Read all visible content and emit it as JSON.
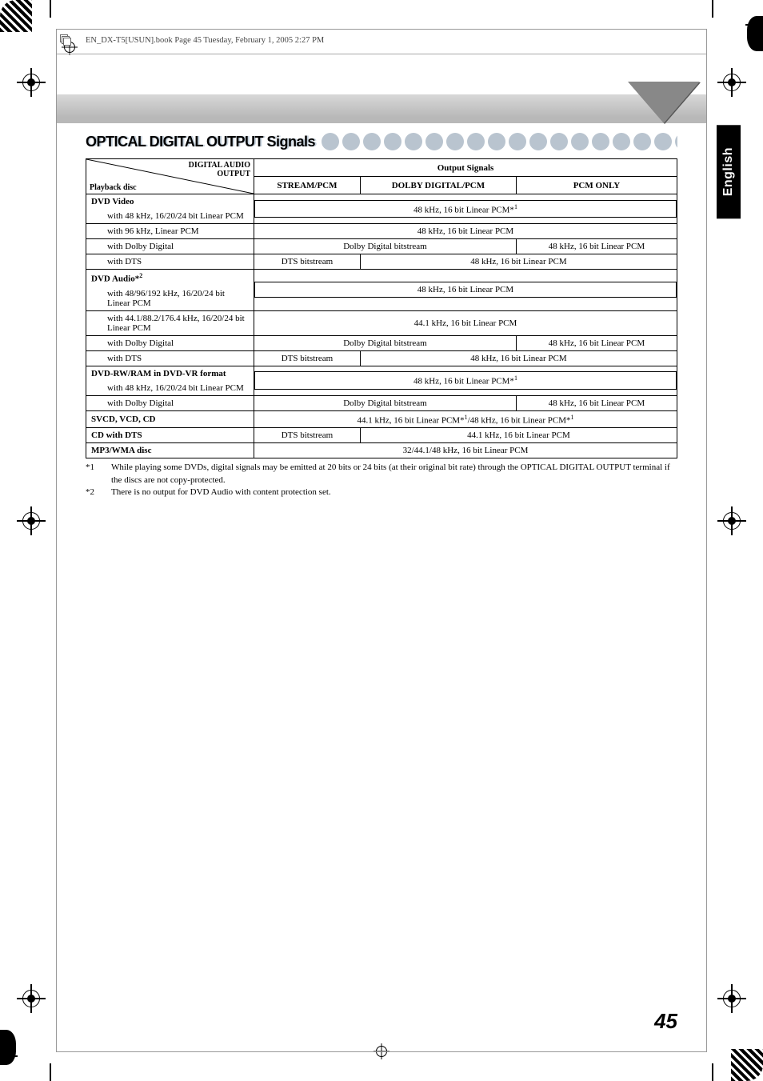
{
  "meta": {
    "bookline": "EN_DX-T5[USUN].book  Page 45  Tuesday, February 1, 2005  2:27 PM"
  },
  "lang_tab": "English",
  "section_title": "OPTICAL DIGITAL OUTPUT Signals",
  "table": {
    "diag_top": "DIGITAL AUDIO\nOUTPUT",
    "diag_bottom": "Playback disc",
    "output_signals_header": "Output Signals",
    "cols": {
      "stream": "STREAM/PCM",
      "dolby": "DOLBY DIGITAL/PCM",
      "pcm": "PCM ONLY"
    },
    "groups": [
      {
        "title": "DVD Video",
        "rows": [
          {
            "label": "with 48 kHz, 16/20/24 bit Linear PCM",
            "span": "all",
            "value": "48 kHz, 16 bit Linear PCM*",
            "sup": "1"
          },
          {
            "label": "with 96 kHz, Linear PCM",
            "span": "all",
            "value": "48 kHz, 16 bit Linear PCM"
          },
          {
            "label": "with Dolby Digital",
            "span": "2+1",
            "left": "Dolby Digital bitstream",
            "right": "48 kHz, 16 bit Linear PCM"
          },
          {
            "label": "with DTS",
            "span": "1+2",
            "left": "DTS bitstream",
            "right": "48 kHz, 16 bit Linear PCM"
          }
        ]
      },
      {
        "title": "DVD Audio*",
        "title_sup": "2",
        "rows": [
          {
            "label": "with 48/96/192 kHz, 16/20/24 bit Linear PCM",
            "span": "all",
            "value": "48 kHz, 16 bit Linear PCM"
          },
          {
            "label": "with 44.1/88.2/176.4 kHz, 16/20/24 bit Linear PCM",
            "span": "all",
            "value": "44.1 kHz, 16 bit Linear PCM"
          },
          {
            "label": "with Dolby Digital",
            "span": "2+1",
            "left": "Dolby Digital bitstream",
            "right": "48 kHz, 16 bit Linear PCM"
          },
          {
            "label": "with DTS",
            "span": "1+2",
            "left": "DTS bitstream",
            "right": "48 kHz, 16 bit Linear PCM"
          }
        ]
      },
      {
        "title": "DVD-RW/RAM in DVD-VR format",
        "rows": [
          {
            "label": "with 48 kHz, 16/20/24 bit Linear PCM",
            "span": "all",
            "value": "48 kHz, 16 bit Linear PCM*",
            "sup": "1"
          },
          {
            "label": "with Dolby Digital",
            "span": "2+1",
            "left": "Dolby Digital bitstream",
            "right": "48 kHz, 16 bit Linear PCM"
          }
        ]
      },
      {
        "title": "SVCD, VCD, CD",
        "single": true,
        "span": "all",
        "value_html": "44.1 kHz, 16 bit Linear PCM*<sup>1</sup>/48 kHz, 16 bit Linear PCM*<sup>1</sup>"
      },
      {
        "title": "CD with DTS",
        "single": true,
        "span": "1+2",
        "left": "DTS bitstream",
        "right": "44.1 kHz, 16 bit Linear PCM"
      },
      {
        "title": "MP3/WMA disc",
        "single": true,
        "span": "all",
        "value": "32/44.1/48 kHz, 16 bit Linear PCM"
      }
    ]
  },
  "footnotes": {
    "f1_id": "*1",
    "f1": "While playing some DVDs, digital signals may be emitted at 20 bits or 24 bits (at their original bit rate) through the OPTICAL DIGITAL OUTPUT terminal if the discs are not copy-protected.",
    "f2_id": "*2",
    "f2": "There is no output for DVD Audio with content protection set."
  },
  "page_number": "45",
  "colors": {
    "dot": "#b9c4cf",
    "banner_top": "#d8d8d8",
    "banner_bot": "#b8b8b8",
    "triangle": "#888888",
    "border": "#000000"
  }
}
